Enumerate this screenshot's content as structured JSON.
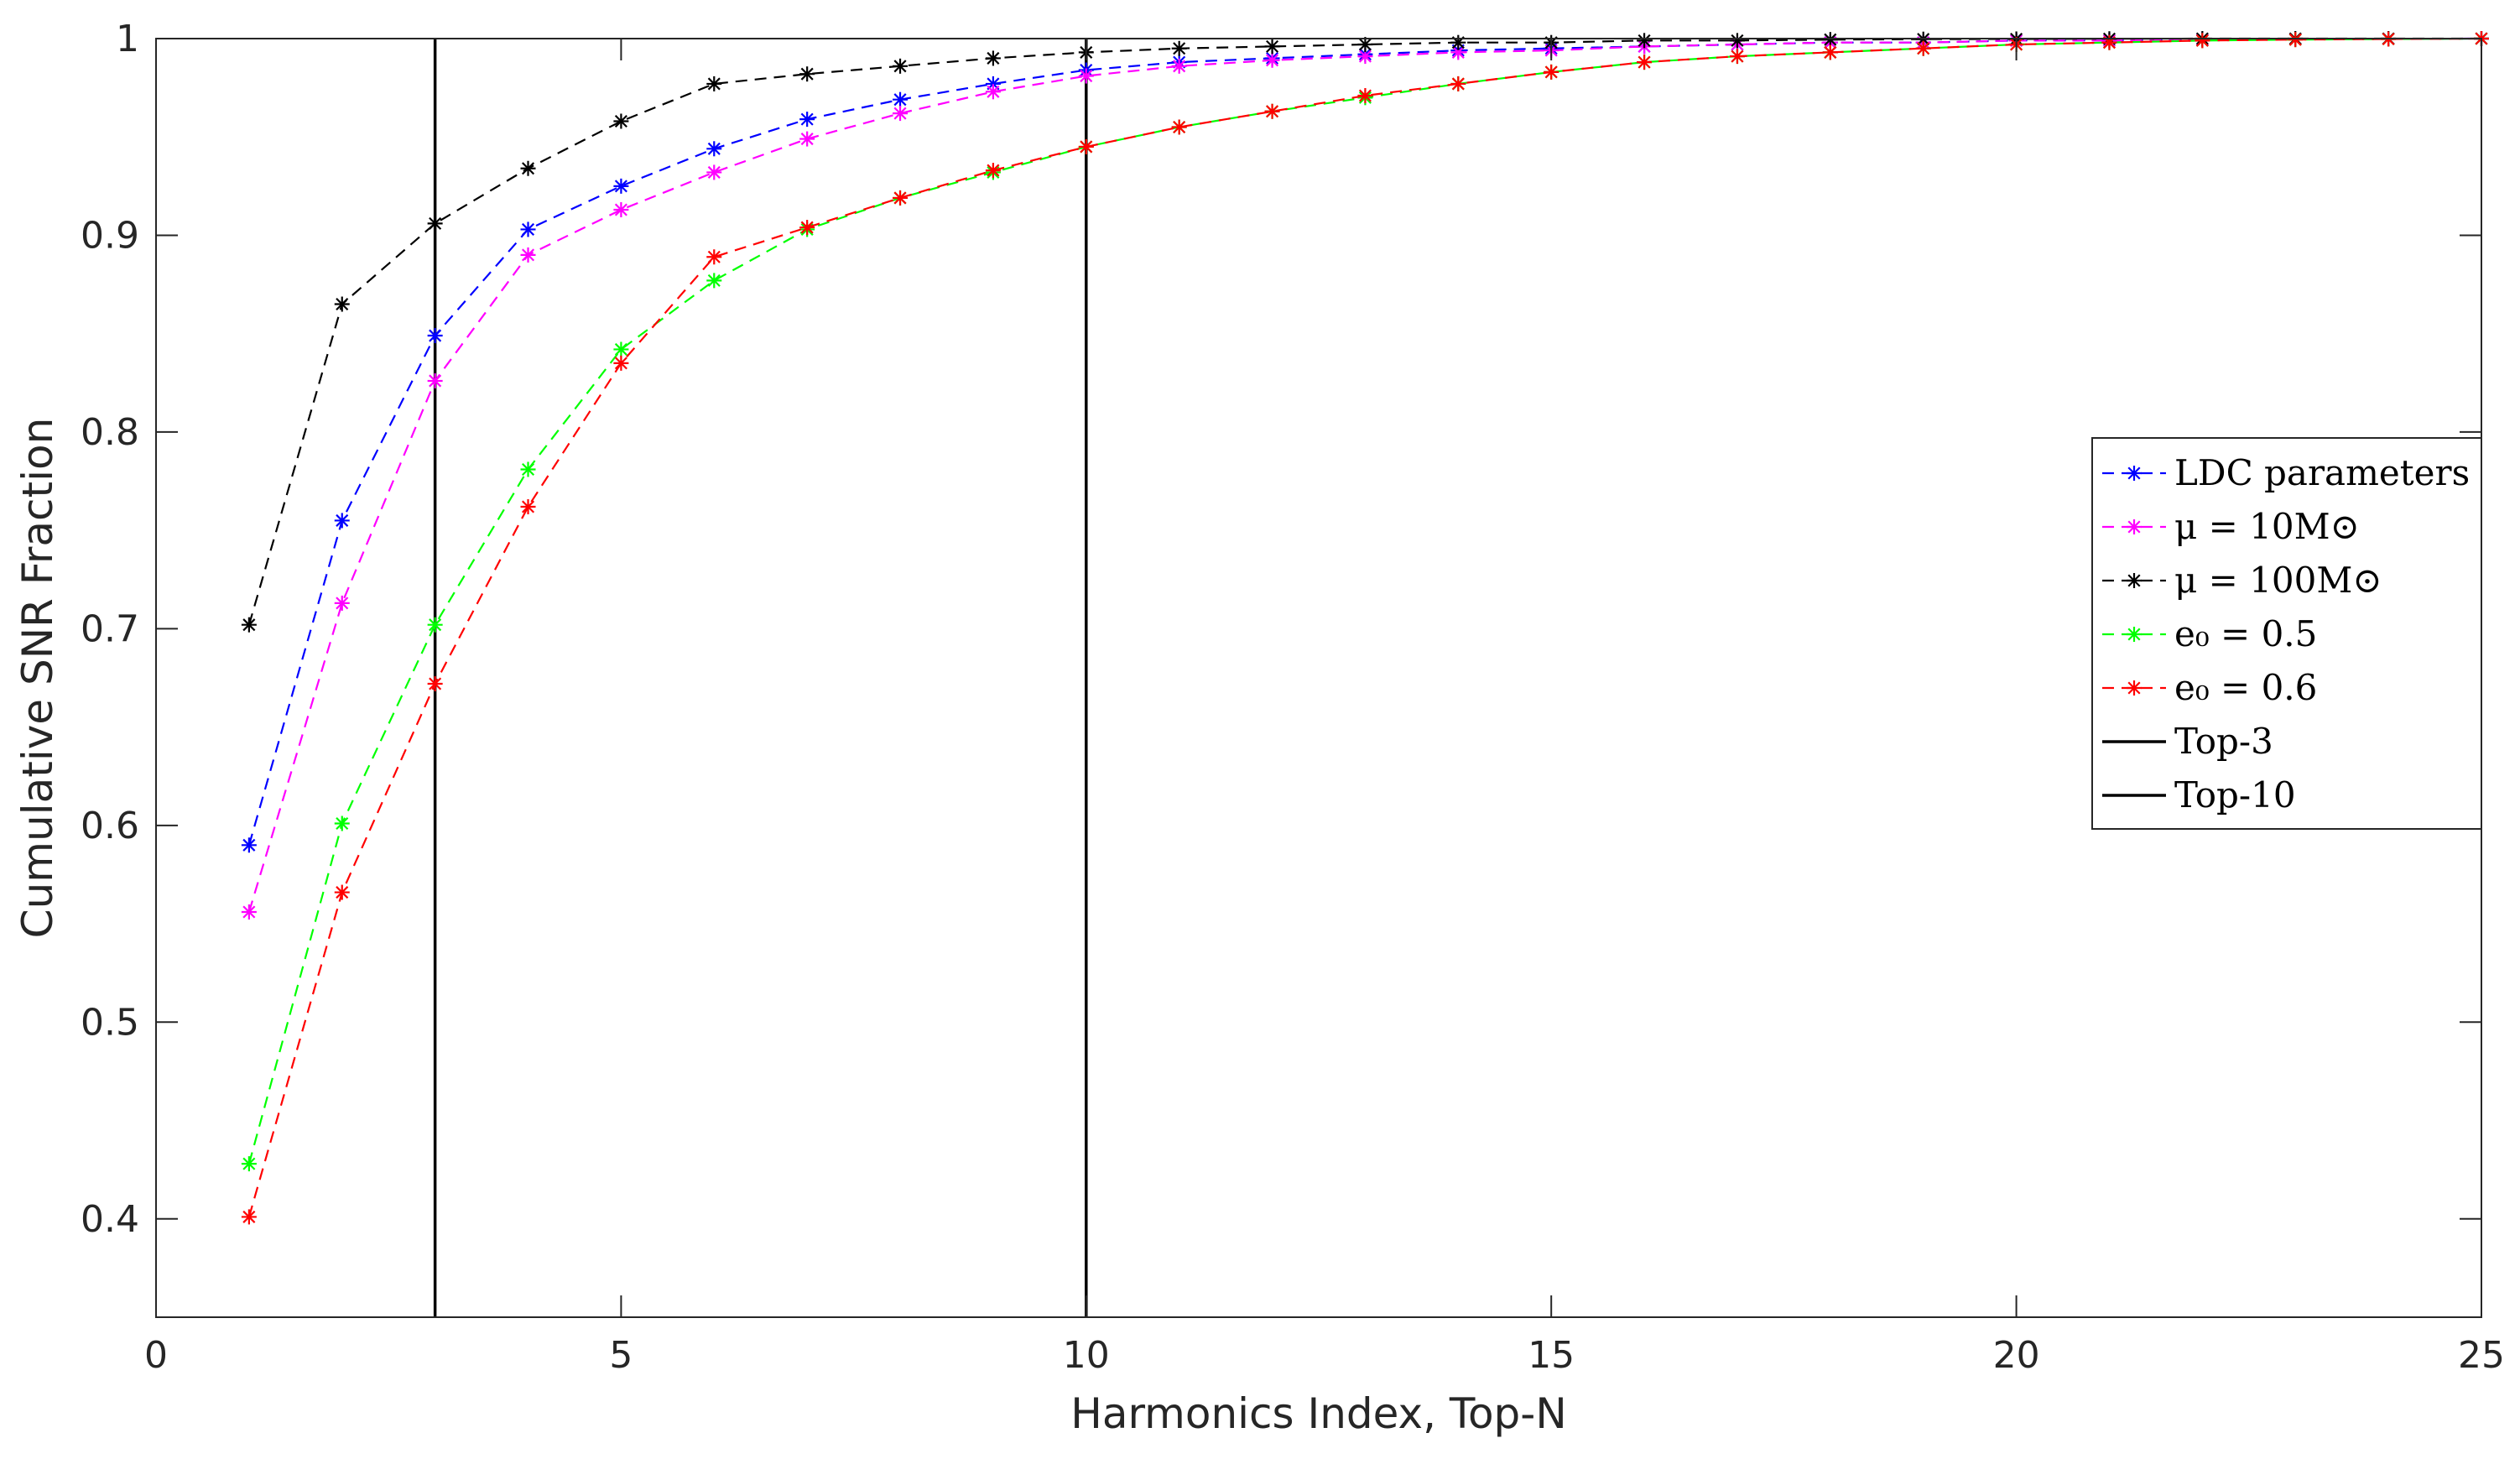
{
  "chart_data": {
    "type": "line",
    "xlabel": "Harmonics Index, Top-N",
    "ylabel": "Cumulative SNR Fraction",
    "xlim": [
      0,
      25
    ],
    "ylim": [
      0.35,
      1
    ],
    "x_ticks": [
      "0",
      "5",
      "10",
      "15",
      "20",
      "25"
    ],
    "y_ticks": [
      "0.4",
      "0.5",
      "0.6",
      "0.7",
      "0.8",
      "0.9",
      "1"
    ],
    "grid": false,
    "legend_position": "right",
    "x": [
      1,
      2,
      3,
      4,
      5,
      6,
      7,
      8,
      9,
      10,
      11,
      12,
      13,
      14,
      15,
      16,
      17,
      18,
      19,
      20,
      21,
      22,
      23,
      24,
      25
    ],
    "series": [
      {
        "name": "LDC parameters",
        "color": "#0000ff",
        "values": [
          0.59,
          0.755,
          0.849,
          0.903,
          0.925,
          0.944,
          0.959,
          0.969,
          0.977,
          0.984,
          0.988,
          0.99,
          0.992,
          0.994,
          0.995,
          0.996,
          0.997,
          0.998,
          0.998,
          0.999,
          0.999,
          0.9995,
          0.9997,
          0.9999,
          1.0
        ]
      },
      {
        "name": "μ = 10M⊙",
        "color": "#ff00ff",
        "values": [
          0.556,
          0.713,
          0.826,
          0.89,
          0.913,
          0.932,
          0.949,
          0.962,
          0.973,
          0.981,
          0.986,
          0.989,
          0.991,
          0.993,
          0.994,
          0.996,
          0.997,
          0.998,
          0.998,
          0.999,
          0.999,
          0.9995,
          0.9997,
          0.9999,
          1.0
        ]
      },
      {
        "name": "μ = 100M⊙",
        "color": "#000000",
        "values": [
          0.702,
          0.865,
          0.906,
          0.934,
          0.958,
          0.977,
          0.982,
          0.986,
          0.99,
          0.993,
          0.995,
          0.996,
          0.997,
          0.998,
          0.998,
          0.999,
          0.999,
          0.9995,
          0.9997,
          0.9998,
          0.9999,
          1.0,
          1.0,
          1.0,
          1.0
        ]
      },
      {
        "name": "e₀ = 0.5",
        "color": "#00ff00",
        "values": [
          0.428,
          0.601,
          0.702,
          0.781,
          0.842,
          0.877,
          0.903,
          0.919,
          0.932,
          0.945,
          0.955,
          0.963,
          0.97,
          0.977,
          0.983,
          0.988,
          0.991,
          0.993,
          0.995,
          0.997,
          0.998,
          0.999,
          0.9995,
          0.9998,
          1.0
        ]
      },
      {
        "name": "e₀ = 0.6",
        "color": "#ff0000",
        "values": [
          0.401,
          0.566,
          0.672,
          0.762,
          0.835,
          0.889,
          0.904,
          0.919,
          0.933,
          0.945,
          0.955,
          0.963,
          0.971,
          0.977,
          0.983,
          0.988,
          0.991,
          0.993,
          0.995,
          0.997,
          0.998,
          0.999,
          0.9995,
          0.9998,
          1.0
        ]
      }
    ],
    "vertical_lines": [
      {
        "name": "Top-3",
        "x": 3,
        "color": "#000000"
      },
      {
        "name": "Top-10",
        "x": 10,
        "color": "#000000"
      }
    ]
  }
}
